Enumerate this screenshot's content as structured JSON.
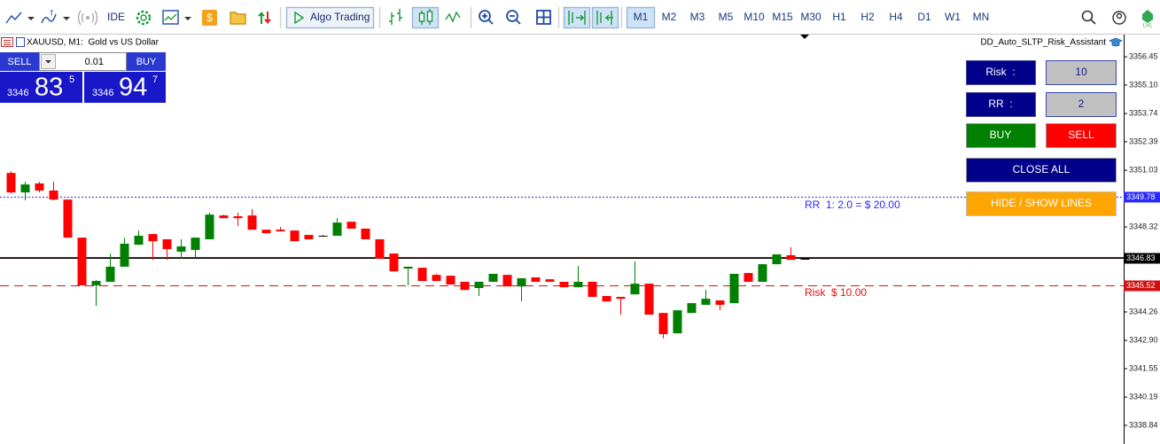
{
  "toolbar": {
    "ide": "IDE",
    "algo_trading": "Algo Trading",
    "timeframes": [
      "M1",
      "M2",
      "M3",
      "M5",
      "M10",
      "M15",
      "M30",
      "H1",
      "H2",
      "H4",
      "D1",
      "W1",
      "MN"
    ]
  },
  "chart_header": {
    "symbol": "XAUUSD, M1:  Gold vs US Dollar",
    "expert": "DD_Auto_SLTP_Risk_Assistant"
  },
  "trade_panel": {
    "sell": "SELL",
    "lot": "0.01",
    "buy": "BUY",
    "bid": {
      "prefix": "3346",
      "big": "83",
      "small": "5"
    },
    "ask": {
      "prefix": "3346",
      "big": "94",
      "small": "7"
    }
  },
  "ea_panel": {
    "risk_label": "Risk  :",
    "risk_value": "10",
    "rr_label": "RR  :",
    "rr_value": "2",
    "buy": "BUY",
    "sell": "SELL",
    "close_all": "CLOSE ALL",
    "hide_show": "HIDE / SHOW LINES"
  },
  "chart_data": {
    "type": "candlestick",
    "ylim": [
      3337.95,
      3357.47
    ],
    "yticks": [
      3356.45,
      {
        "value": 3355.1,
        "label": "3355.10"
      },
      3353.74,
      3352.39,
      3351.03,
      3348.32,
      3344.26,
      {
        "value": 3342.9,
        "label": "3342.90"
      },
      3341.55,
      3340.19,
      3338.84
    ],
    "up_color": "#008000",
    "down_color": "#ff0000",
    "open": [
      3350.9,
      3349.97,
      3350.4,
      3350.06,
      3349.63,
      3347.81,
      3345.53,
      3345.7,
      3346.42,
      3347.47,
      3347.98,
      3347.73,
      3347.14,
      3347.22,
      3347.73,
      3348.87,
      3348.83,
      3348.87,
      3348.19,
      3348.19,
      3348.15,
      3347.94,
      3347.9,
      3347.9,
      3348.57,
      3348.24,
      3347.73,
      3347.05,
      3346.33,
      3346.37,
      3346.03,
      3345.99,
      3345.7,
      3345.4,
      3345.7,
      3346.03,
      3345.48,
      3345.91,
      3345.82,
      3345.7,
      3345.44,
      3345.7,
      3345.02,
      3344.98,
      3345.1,
      3345.61,
      3344.21,
      3343.24,
      3344.21,
      3344.6,
      3344.81,
      3344.68,
      3346.12,
      3345.7,
      3346.54,
      3346.97,
      3346.8
    ],
    "high": [
      3350.99,
      3350.48,
      3350.48,
      3350.48,
      3349.63,
      3347.81,
      3345.78,
      3347.05,
      3347.81,
      3348.15,
      3347.98,
      3347.73,
      3347.73,
      3347.81,
      3349.0,
      3348.91,
      3349.0,
      3349.17,
      3348.19,
      3348.32,
      3348.15,
      3347.94,
      3347.94,
      3348.74,
      3348.57,
      3348.24,
      3347.73,
      3347.05,
      3346.42,
      3346.37,
      3346.08,
      3345.99,
      3345.7,
      3345.7,
      3346.08,
      3346.03,
      3345.87,
      3345.91,
      3345.82,
      3345.7,
      3346.46,
      3345.7,
      3345.02,
      3344.98,
      3346.67,
      3345.61,
      3344.21,
      3344.34,
      3344.68,
      3345.31,
      3344.81,
      3346.08,
      3346.12,
      3346.54,
      3347.01,
      3347.35,
      3346.8
    ],
    "low": [
      3349.93,
      3349.59,
      3349.97,
      3349.59,
      3347.81,
      3345.53,
      3344.55,
      3345.7,
      3346.42,
      3347.47,
      3346.75,
      3346.75,
      3346.8,
      3346.88,
      3347.73,
      3348.74,
      3348.36,
      3348.19,
      3348.02,
      3348.11,
      3347.64,
      3347.73,
      3347.9,
      3347.9,
      3348.24,
      3347.73,
      3346.8,
      3346.2,
      3345.53,
      3345.74,
      3345.74,
      3345.57,
      3345.31,
      3345.02,
      3345.7,
      3345.48,
      3344.76,
      3345.7,
      3345.7,
      3345.44,
      3345.44,
      3344.98,
      3344.76,
      3344.13,
      3345.1,
      3344.13,
      3342.99,
      3343.24,
      3344.21,
      3344.6,
      3344.34,
      3344.68,
      3345.7,
      3345.7,
      3346.54,
      3346.75,
      3346.8
    ],
    "close": [
      3349.97,
      3350.35,
      3350.06,
      3349.63,
      3347.81,
      3345.53,
      3345.74,
      3346.42,
      3347.52,
      3347.9,
      3347.64,
      3347.26,
      3347.39,
      3347.81,
      3348.91,
      3348.74,
      3348.74,
      3348.19,
      3348.02,
      3348.11,
      3347.64,
      3347.73,
      3347.9,
      3348.53,
      3348.24,
      3347.73,
      3346.8,
      3346.2,
      3346.42,
      3345.74,
      3345.74,
      3345.57,
      3345.31,
      3345.7,
      3346.08,
      3345.48,
      3345.87,
      3345.7,
      3345.7,
      3345.44,
      3345.7,
      3344.98,
      3344.76,
      3344.89,
      3345.61,
      3344.13,
      3343.2,
      3344.34,
      3344.68,
      3344.89,
      3344.6,
      3346.08,
      3345.7,
      3346.54,
      3347.01,
      3346.75,
      3346.8
    ],
    "price_lines": [
      {
        "value": 3349.78,
        "color": "#2a2aff",
        "style": "dotted",
        "tag": true
      },
      {
        "value": 3346.9,
        "color": "#cc0000",
        "style": "solid",
        "tag": false
      },
      {
        "value": 3346.83,
        "color": "#000000",
        "style": "solid",
        "tag": true
      },
      {
        "value": 3345.52,
        "color": "#d01010",
        "style": "dashed",
        "tag": true
      }
    ],
    "annotations": [
      {
        "text": "RR  1: 2.0 = $ 20.00",
        "color": "#2a2aff"
      },
      {
        "text": "Risk  $ 10.00",
        "color": "#e01010"
      }
    ]
  }
}
